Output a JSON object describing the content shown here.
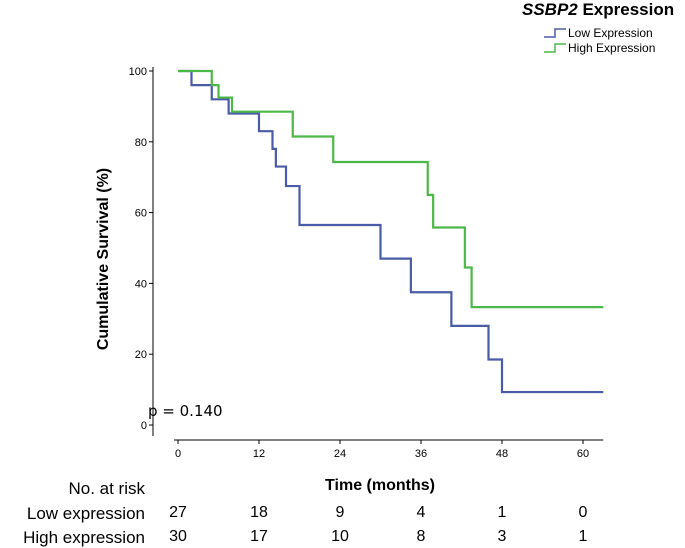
{
  "chart_data": {
    "type": "line",
    "subtype": "kaplan-meier-step",
    "title": "",
    "xlabel": "Time (months)",
    "ylabel": "Cumulative Survival (%)",
    "xlim": [
      -2,
      63
    ],
    "ylim": [
      0,
      100
    ],
    "xticks": [
      0,
      12,
      24,
      36,
      48,
      60
    ],
    "yticks": [
      0,
      20,
      40,
      60,
      80,
      100
    ],
    "grid": false,
    "legend": {
      "title_gene": "SSBP2",
      "title_rest": " Expression",
      "placement": "top-right"
    },
    "series": [
      {
        "name": "Low Expression",
        "color": "#4a5ba8",
        "steps": [
          [
            0,
            100
          ],
          [
            2,
            96
          ],
          [
            5,
            92
          ],
          [
            7.5,
            88
          ],
          [
            12,
            83
          ],
          [
            14,
            78
          ],
          [
            14.5,
            73
          ],
          [
            16,
            67.5
          ],
          [
            18,
            56.5
          ],
          [
            30,
            47
          ],
          [
            34.5,
            37.5
          ],
          [
            40.5,
            28
          ],
          [
            46,
            18.5
          ],
          [
            48,
            9.3
          ],
          [
            63,
            9.3
          ]
        ]
      },
      {
        "name": "High Expression",
        "color": "#4cb848",
        "steps": [
          [
            0,
            100
          ],
          [
            5,
            96
          ],
          [
            6,
            92.5
          ],
          [
            8,
            88.5
          ],
          [
            17,
            81.5
          ],
          [
            23,
            74.3
          ],
          [
            37,
            65
          ],
          [
            37.8,
            55.8
          ],
          [
            42.5,
            44.5
          ],
          [
            43.5,
            33.3
          ],
          [
            63,
            33.3
          ]
        ]
      }
    ]
  },
  "annotation": {
    "pvalue": "p = 0.140"
  },
  "risk_table": {
    "header": "No. at risk",
    "rows": [
      {
        "label": "Low expression",
        "counts": [
          "27",
          "18",
          "9",
          "4",
          "1",
          "0"
        ]
      },
      {
        "label": "High expression",
        "counts": [
          "30",
          "17",
          "10",
          "8",
          "3",
          "1"
        ]
      }
    ]
  }
}
